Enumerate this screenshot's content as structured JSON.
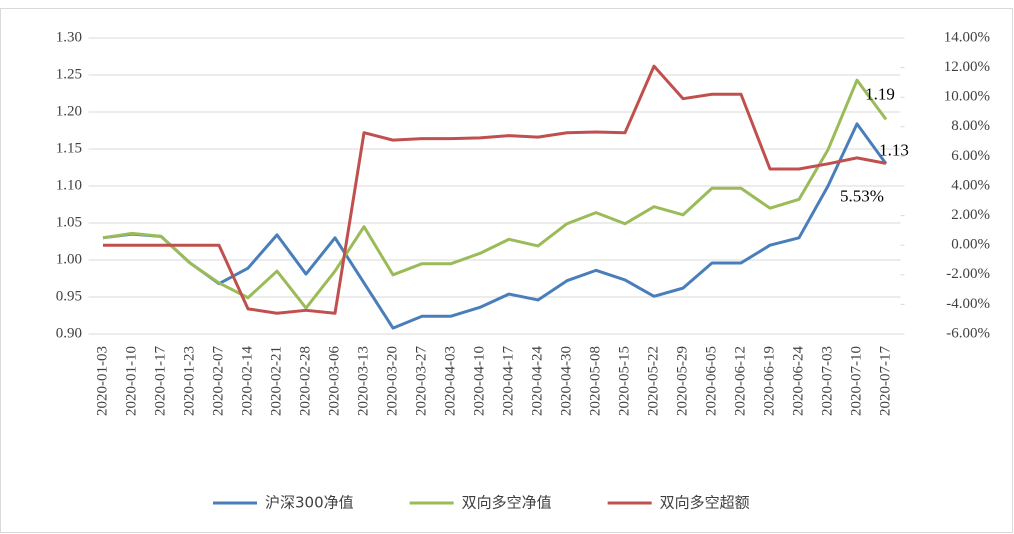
{
  "chart_data": {
    "type": "line",
    "categories": [
      "2020-01-03",
      "2020-01-10",
      "2020-01-17",
      "2020-01-23",
      "2020-02-07",
      "2020-02-14",
      "2020-02-21",
      "2020-02-28",
      "2020-03-06",
      "2020-03-13",
      "2020-03-20",
      "2020-03-27",
      "2020-04-03",
      "2020-04-10",
      "2020-04-17",
      "2020-04-24",
      "2020-04-30",
      "2020-05-08",
      "2020-05-15",
      "2020-05-22",
      "2020-05-29",
      "2020-06-05",
      "2020-06-12",
      "2020-06-19",
      "2020-06-24",
      "2020-07-03",
      "2020-07-10",
      "2020-07-17"
    ],
    "series": [
      {
        "name": "沪深300净值",
        "color": "#4a7ebb",
        "values": [
          1.03,
          1.035,
          1.032,
          0.996,
          0.968,
          0.989,
          1.034,
          0.981,
          1.03,
          0.969,
          0.908,
          0.924,
          0.924,
          0.936,
          0.954,
          0.946,
          0.972,
          0.986,
          0.973,
          0.951,
          0.962,
          0.996,
          0.996,
          1.02,
          1.03,
          1.1,
          1.184,
          1.13
        ],
        "value_labels": [
          null,
          null,
          null,
          null,
          null,
          null,
          null,
          null,
          null,
          null,
          null,
          null,
          null,
          null,
          null,
          null,
          null,
          null,
          null,
          null,
          null,
          null,
          null,
          null,
          null,
          null,
          null,
          "1.13"
        ]
      },
      {
        "name": "双向多空净值",
        "color": "#9bbb59",
        "values": [
          1.03,
          1.036,
          1.032,
          0.996,
          0.969,
          0.949,
          0.985,
          0.935,
          0.985,
          1.045,
          0.98,
          0.995,
          0.995,
          1.009,
          1.028,
          1.019,
          1.049,
          1.064,
          1.049,
          1.072,
          1.061,
          1.097,
          1.097,
          1.07,
          1.082,
          1.149,
          1.243,
          1.19
        ],
        "value_labels": [
          null,
          null,
          null,
          null,
          null,
          null,
          null,
          null,
          null,
          null,
          null,
          null,
          null,
          null,
          null,
          null,
          null,
          null,
          null,
          null,
          null,
          null,
          null,
          null,
          null,
          null,
          null,
          "1.19"
        ]
      },
      {
        "name": "双向多空超额",
        "color": "#c0504d",
        "axis": "y2",
        "values": [
          0,
          0,
          0,
          0,
          0,
          -4.3,
          -4.6,
          -4.4,
          -4.6,
          7.6,
          7.1,
          7.2,
          7.2,
          7.25,
          7.4,
          7.3,
          7.6,
          7.65,
          7.6,
          12.1,
          9.9,
          10.2,
          10.2,
          5.15,
          5.15,
          5.5,
          5.9,
          5.53
        ],
        "value_labels": [
          null,
          null,
          null,
          null,
          null,
          null,
          null,
          null,
          null,
          null,
          null,
          null,
          null,
          null,
          null,
          null,
          null,
          null,
          null,
          null,
          null,
          null,
          null,
          null,
          null,
          null,
          null,
          "5.53%"
        ]
      }
    ],
    "ylim": [
      0.9,
      1.3
    ],
    "yticks": [
      {
        "value": 0.9,
        "label": "0.90"
      },
      0.95,
      {
        "value": 1,
        "label": "1.00"
      },
      1.05,
      {
        "value": 1.1,
        "label": "1.10"
      },
      1.15,
      {
        "value": 1.2,
        "label": "1.20"
      },
      1.25,
      {
        "value": 1.3,
        "label": "1.30"
      }
    ],
    "y2lim": [
      -6,
      14
    ],
    "y2ticks": [
      {
        "value": -6,
        "label": "-6.00%"
      },
      {
        "value": -4,
        "label": "-4.00%"
      },
      {
        "value": -2,
        "label": "-2.00%"
      },
      {
        "value": 0,
        "label": "0.00%"
      },
      {
        "value": 2,
        "label": "2.00%"
      },
      {
        "value": 4,
        "label": "4.00%"
      },
      {
        "value": 6,
        "label": "6.00%"
      },
      {
        "value": 8,
        "label": "8.00%"
      },
      {
        "value": 10,
        "label": "10.00%"
      },
      {
        "value": 12,
        "label": "12.00%"
      },
      {
        "value": 14,
        "label": "14.00%"
      }
    ],
    "grid": true,
    "legend": "bottom"
  }
}
